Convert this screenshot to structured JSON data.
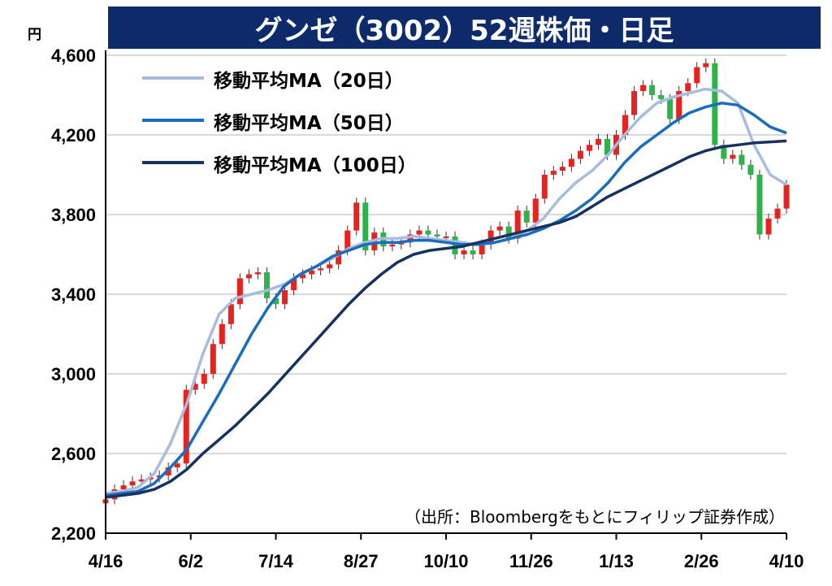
{
  "chart_data": {
    "type": "line",
    "title": "グンゼ（3002）52週株価・日足",
    "unit_label": "円",
    "source": "（出所：Bloombergをもとにフィリップ証券作成）",
    "ylim": [
      2200,
      4600
    ],
    "yticks": [
      4600,
      4200,
      3800,
      3400,
      3000,
      2600,
      2200
    ],
    "ytick_labels": [
      "4,600",
      "4,200",
      "3,800",
      "3,400",
      "3,000",
      "2,600",
      "2,200"
    ],
    "xtick_labels": [
      "4/16",
      "6/2",
      "7/14",
      "8/27",
      "10/10",
      "11/26",
      "1/13",
      "2/26",
      "4/10"
    ],
    "grid": true,
    "legend_position": "top-left",
    "series": [
      {
        "name": "移動平均MA（20日）",
        "color": "#a9bcdc",
        "values": [
          2400,
          2410,
          2430,
          2500,
          2650,
          2850,
          3100,
          3300,
          3380,
          3400,
          3420,
          3450,
          3500,
          3540,
          3580,
          3630,
          3660,
          3680,
          3680,
          3690,
          3680,
          3670,
          3660,
          3650,
          3660,
          3680,
          3720,
          3780,
          3880,
          3960,
          4020,
          4100,
          4200,
          4290,
          4360,
          4390,
          4410,
          4430,
          4420,
          4360,
          4150,
          4000,
          3950
        ]
      },
      {
        "name": "移動平均MA（50日）",
        "color": "#1a6cbf",
        "values": [
          2390,
          2400,
          2410,
          2450,
          2530,
          2620,
          2760,
          2900,
          3050,
          3200,
          3330,
          3440,
          3500,
          3540,
          3590,
          3620,
          3650,
          3660,
          3660,
          3670,
          3670,
          3660,
          3650,
          3650,
          3660,
          3680,
          3700,
          3730,
          3770,
          3820,
          3880,
          3960,
          4060,
          4140,
          4200,
          4260,
          4310,
          4340,
          4360,
          4350,
          4300,
          4240,
          4210
        ]
      },
      {
        "name": "移動平均MA（100日）",
        "color": "#17325f",
        "values": [
          2380,
          2390,
          2400,
          2420,
          2460,
          2520,
          2600,
          2670,
          2740,
          2820,
          2900,
          2990,
          3080,
          3170,
          3260,
          3350,
          3430,
          3500,
          3560,
          3600,
          3620,
          3630,
          3640,
          3660,
          3680,
          3700,
          3720,
          3740,
          3760,
          3790,
          3840,
          3890,
          3930,
          3970,
          4010,
          4050,
          4090,
          4120,
          4140,
          4150,
          4160,
          4165,
          4170
        ]
      }
    ],
    "candles_close": [
      2370,
      2420,
      2440,
      2460,
      2470,
      2480,
      2490,
      2530,
      2550,
      2920,
      2950,
      3000,
      3150,
      3250,
      3350,
      3480,
      3500,
      3510,
      3380,
      3350,
      3420,
      3480,
      3500,
      3520,
      3530,
      3550,
      3620,
      3720,
      3860,
      3620,
      3710,
      3640,
      3650,
      3660,
      3700,
      3720,
      3700,
      3690,
      3690,
      3600,
      3620,
      3600,
      3650,
      3720,
      3740,
      3680,
      3820,
      3760,
      3880,
      4000,
      4020,
      4040,
      4080,
      4120,
      4150,
      4180,
      4100,
      4200,
      4300,
      4420,
      4450,
      4400,
      4380,
      4280,
      4420,
      4460,
      4540,
      4560,
      4150,
      4080,
      4100,
      4050,
      4000,
      3700,
      3780,
      3830,
      3950
    ]
  }
}
